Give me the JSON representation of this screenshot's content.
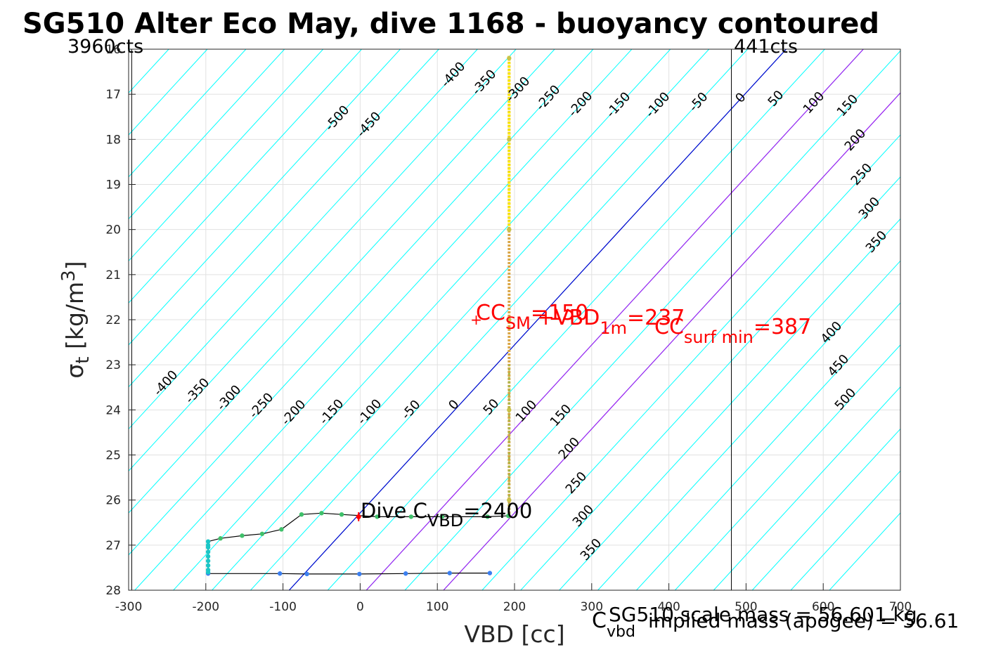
{
  "chart_data": {
    "type": "scatter",
    "title": "SG510 Alter Eco May, dive 1168 - buoyancy contoured",
    "xlabel": "VBD [cc]",
    "ylabel": "σ_t [kg/m^3]",
    "xlim": [
      -300,
      700
    ],
    "ylim": [
      16,
      28
    ],
    "y_reversed": true,
    "grid": true,
    "x_ticks": [
      "-300",
      "-200",
      "-100",
      "0",
      "100",
      "200",
      "300",
      "400",
      "500",
      "600",
      "700"
    ],
    "y_ticks": [
      "16",
      "17",
      "18",
      "19",
      "20",
      "21",
      "22",
      "23",
      "24",
      "25",
      "26",
      "27",
      "28"
    ],
    "contour_levels_upper": [
      "-500",
      "-450",
      "-400",
      "-350",
      "-300",
      "-250",
      "-200",
      "-150",
      "-100",
      "-50",
      "0",
      "50",
      "100",
      "150",
      "200",
      "250",
      "300",
      "350",
      "400",
      "450",
      "500"
    ],
    "contour_levels_lower": [
      "-400",
      "-350",
      "-300",
      "-250",
      "-200",
      "-150",
      "-100",
      "-50",
      "0",
      "50",
      "100",
      "150",
      "200",
      "250",
      "300",
      "350"
    ],
    "vertical_markers": [
      {
        "x": -296,
        "label": "3960cts"
      },
      {
        "x": 481,
        "label": "441cts"
      }
    ],
    "colors": {
      "contour": "#00ffff",
      "zero_line": "#0000cc",
      "special_lines": "#a020f0",
      "annotation": "#ff0000"
    },
    "special_lines": [
      {
        "x_at_28": -92,
        "x_at_16": 552
      },
      {
        "x_at_28": 8,
        "x_at_16": 652
      },
      {
        "x_at_28": 108,
        "x_at_16": 752
      }
    ],
    "descent_profile": [
      {
        "x": -197,
        "y": 27.63
      },
      {
        "x": -104,
        "y": 27.63
      },
      {
        "x": -69,
        "y": 27.64
      },
      {
        "x": -1,
        "y": 27.64
      },
      {
        "x": 59,
        "y": 27.63
      },
      {
        "x": 116,
        "y": 27.62
      },
      {
        "x": 168,
        "y": 27.62
      }
    ],
    "ascent_profile": [
      {
        "x": -197,
        "y": 27.6
      },
      {
        "x": -197,
        "y": 27.35
      },
      {
        "x": -197,
        "y": 27.0
      },
      {
        "x": -197,
        "y": 26.92
      },
      {
        "x": -181,
        "y": 26.85
      },
      {
        "x": -153,
        "y": 26.79
      },
      {
        "x": -127,
        "y": 26.75
      },
      {
        "x": -102,
        "y": 26.65
      },
      {
        "x": -76,
        "y": 26.32
      },
      {
        "x": -50,
        "y": 26.29
      },
      {
        "x": -24,
        "y": 26.32
      },
      {
        "x": 22,
        "y": 26.37
      },
      {
        "x": 66,
        "y": 26.37
      },
      {
        "x": 106,
        "y": 26.37
      },
      {
        "x": 165,
        "y": 26.37
      },
      {
        "x": 192,
        "y": 26.35
      },
      {
        "x": 193,
        "y": 26.0
      },
      {
        "x": 193,
        "y": 24.0
      },
      {
        "x": 193,
        "y": 22.0
      },
      {
        "x": 193,
        "y": 20.0
      },
      {
        "x": 193,
        "y": 18.0
      },
      {
        "x": 193,
        "y": 16.2
      }
    ],
    "annotations": {
      "cc_sm": {
        "main": "CC",
        "sub": "SM",
        "value": "=150",
        "x": 150,
        "y": 22.0
      },
      "vbd_1m": {
        "main": "+VBD",
        "sub": "1m",
        "value": "=237"
      },
      "cc_surf": {
        "main": "CC",
        "sub": "surf min",
        "value": "=387"
      },
      "dive_c_vbd": {
        "main": "Dive C",
        "sub": "VBD",
        "value": "=2400"
      },
      "c_vbd": {
        "main": "C",
        "sub": "vbd"
      },
      "scale_mass": "SG510 scale mass = 56.601 kg",
      "implied_mass": "implied mass (apogee) = 56.61"
    }
  }
}
